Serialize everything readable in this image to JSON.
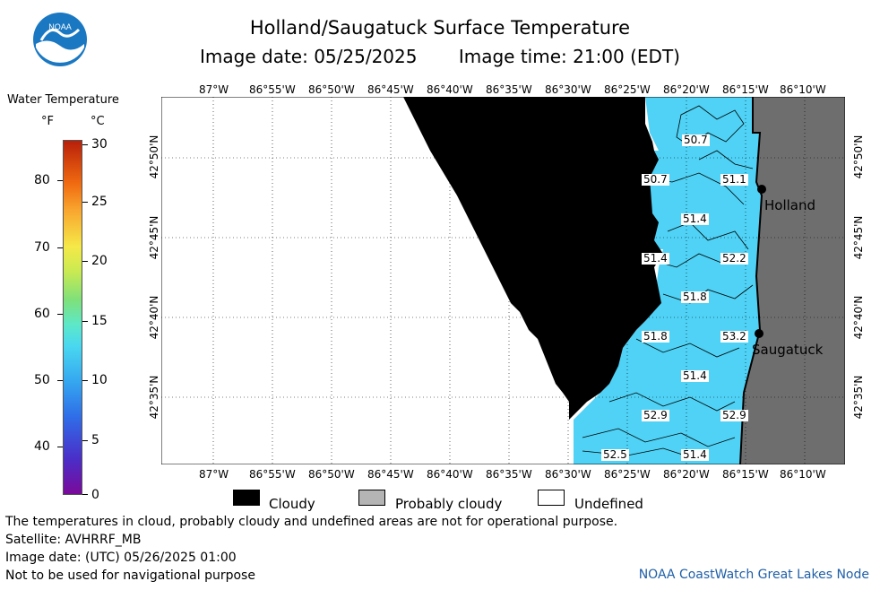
{
  "header": {
    "title": "Holland/Saugatuck Surface Temperature",
    "image_date": "Image date: 05/25/2025",
    "image_time": "Image time: 21:00 (EDT)",
    "logo_text": "NOAA"
  },
  "colorbar": {
    "title": "Water Temperature",
    "unit_f": "°F",
    "unit_c": "°C",
    "f_ticks": [
      "80",
      "70",
      "60",
      "50",
      "40"
    ],
    "c_ticks": [
      "30",
      "25",
      "20",
      "15",
      "10",
      "5",
      "0"
    ]
  },
  "map": {
    "lon_labels": [
      "87°W",
      "86°55'W",
      "86°50'W",
      "86°45'W",
      "86°40'W",
      "86°35'W",
      "86°30'W",
      "86°25'W",
      "86°20'W",
      "86°15'W",
      "86°10'W"
    ],
    "lat_labels": [
      "42°50'N",
      "42°45'N",
      "42°40'N",
      "42°35'N"
    ],
    "cities": [
      {
        "name": "Holland"
      },
      {
        "name": "Saugatuck"
      }
    ],
    "sst_values": [
      "50.7",
      "50.7",
      "51.1",
      "51.4",
      "51.4",
      "52.2",
      "51.8",
      "51.8",
      "53.2",
      "51.4",
      "52.9",
      "52.9",
      "52.5",
      "51.4"
    ],
    "colors": {
      "water": "#4fd2f5",
      "cloud": "#000000",
      "land": "#6e6e6e",
      "undefined": "#ffffff"
    }
  },
  "legend": {
    "cloudy": "Cloudy",
    "probably_cloudy": "Probably cloudy",
    "undefined": "Undefined"
  },
  "footer": {
    "line1": "The temperatures in cloud, probably cloudy and undefined areas are not for operational purpose.",
    "line2": "Satellite: AVHRRF_MB",
    "line3": "Image date: (UTC) 05/26/2025  01:00",
    "line4": "Not to be used for navigational purpose",
    "credit": "NOAA CoastWatch Great Lakes Node"
  }
}
